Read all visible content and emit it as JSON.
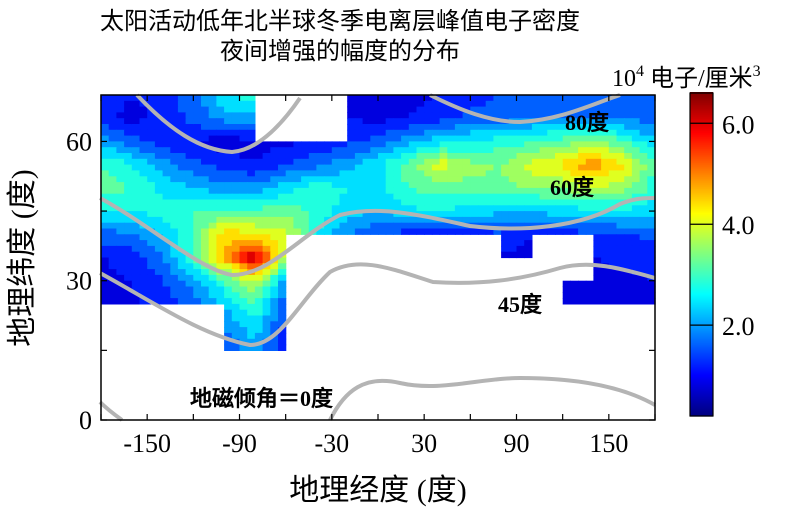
{
  "chart_data": {
    "type": "heatmap",
    "title_lines": [
      "太阳活动低年北半球冬季电离层峰值电子密度",
      "夜间增强的幅度的分布"
    ],
    "xlabel": "地理经度 (度)",
    "ylabel": "地理纬度 (度)",
    "colorbar_label_base": "10",
    "colorbar_label_exp": "4",
    "colorbar_label_unit": "电子/厘米",
    "colorbar_label_unit_exp": "3",
    "colormap": "jet",
    "clim": [
      0.2,
      6.6
    ],
    "colorbar_ticks": [
      "2.0",
      "4.0",
      "6.0"
    ],
    "colorbar_tick_values": [
      2.0,
      4.0,
      6.0
    ],
    "xlim": [
      -180,
      180
    ],
    "ylim": [
      0,
      70
    ],
    "xticks": [
      -150,
      -90,
      -30,
      30,
      90,
      150
    ],
    "xtick_labels": [
      "-150",
      "-90",
      "-30",
      "30",
      "90",
      "150"
    ],
    "yticks": [
      0,
      30,
      60
    ],
    "ytick_labels": [
      "0",
      "30",
      "60"
    ],
    "grid": false,
    "lon": [
      -180,
      -160,
      -140,
      -120,
      -100,
      -80,
      -60,
      -40,
      -20,
      0,
      20,
      40,
      60,
      80,
      100,
      120,
      140,
      160,
      180
    ],
    "lat": [
      70,
      65,
      60,
      55,
      50,
      45,
      40,
      35,
      30,
      25,
      20,
      15,
      10
    ],
    "values": [
      [
        1.3,
        1.0,
        1.2,
        1.6,
        2.6,
        2.8,
        null,
        null,
        1.0,
        0.8,
        0.8,
        1.0,
        1.2,
        1.4,
        1.6,
        1.8,
        1.6,
        1.5,
        1.4
      ],
      [
        1.2,
        0.8,
        1.2,
        1.5,
        2.0,
        2.0,
        null,
        null,
        1.0,
        0.9,
        1.0,
        1.3,
        1.5,
        1.6,
        1.8,
        1.8,
        1.6,
        1.8,
        1.5
      ],
      [
        2.0,
        1.6,
        1.2,
        1.0,
        0.8,
        0.9,
        0.9,
        1.0,
        1.3,
        1.5,
        2.0,
        2.4,
        2.6,
        2.8,
        2.9,
        3.2,
        3.5,
        3.0,
        2.2
      ],
      [
        3.0,
        2.6,
        2.0,
        1.5,
        1.2,
        1.0,
        1.4,
        1.7,
        2.0,
        2.5,
        3.2,
        4.1,
        3.5,
        3.4,
        4.0,
        4.3,
        5.0,
        4.2,
        3.0
      ],
      [
        3.2,
        3.0,
        2.5,
        2.2,
        2.0,
        2.0,
        2.4,
        2.8,
        2.6,
        2.5,
        3.0,
        3.2,
        3.3,
        3.3,
        3.4,
        3.5,
        3.8,
        3.6,
        2.8
      ],
      [
        2.6,
        2.6,
        2.8,
        3.0,
        3.0,
        3.1,
        3.2,
        2.9,
        2.4,
        2.2,
        2.5,
        2.6,
        2.4,
        2.3,
        2.3,
        2.4,
        2.5,
        2.5,
        2.3
      ],
      [
        1.6,
        1.8,
        2.2,
        3.0,
        4.5,
        4.2,
        4.0,
        2.6,
        1.8,
        1.4,
        1.2,
        1.0,
        1.2,
        1.3,
        1.0,
        1.2,
        1.3,
        1.4,
        1.5
      ],
      [
        1.0,
        1.2,
        1.8,
        3.0,
        4.6,
        6.3,
        3.6,
        null,
        null,
        null,
        null,
        null,
        null,
        0.9,
        0.9,
        null,
        1.0,
        1.1,
        1.2
      ],
      [
        0.8,
        1.0,
        1.4,
        2.0,
        3.0,
        4.0,
        2.0,
        null,
        null,
        null,
        null,
        null,
        null,
        null,
        0.8,
        0.8,
        0.9,
        0.9,
        1.0
      ],
      [
        0.8,
        0.9,
        1.2,
        1.6,
        2.2,
        3.0,
        1.5,
        null,
        null,
        null,
        null,
        null,
        null,
        null,
        null,
        0.7,
        0.7,
        0.8,
        0.8
      ],
      [
        null,
        null,
        null,
        null,
        1.8,
        2.5,
        1.2,
        null,
        null,
        null,
        null,
        null,
        null,
        null,
        null,
        null,
        null,
        null,
        null
      ],
      [
        null,
        null,
        null,
        null,
        1.4,
        2.0,
        1.0,
        null,
        null,
        null,
        null,
        null,
        null,
        null,
        null,
        null,
        null,
        null,
        null
      ],
      [
        null,
        null,
        null,
        null,
        null,
        1.5,
        null,
        null,
        null,
        null,
        null,
        null,
        null,
        null,
        null,
        null,
        null,
        null,
        null
      ]
    ],
    "dip_lines_color": "#b4b4b4",
    "annotations": [
      "80度",
      "60度",
      "45度",
      "地磁倾角＝0度"
    ]
  }
}
